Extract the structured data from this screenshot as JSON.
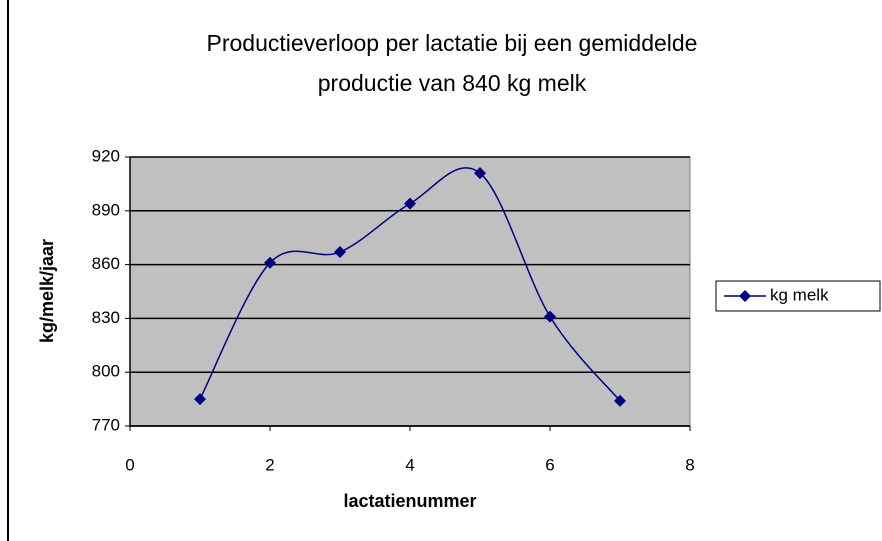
{
  "chart_data": {
    "type": "scatter-smooth",
    "title": [
      "Productieverloop per lactatie bij een gemiddelde",
      "productie van 840 kg melk"
    ],
    "x_label": "lactatienummer",
    "y_label": "kg/melk/jaar",
    "x": [
      1,
      2,
      3,
      4,
      5,
      6,
      7
    ],
    "series": [
      {
        "name": "kg melk",
        "color": "#000080",
        "values": [
          785,
          861,
          867,
          894,
          911,
          831,
          784
        ]
      }
    ],
    "xlim": [
      0,
      8
    ],
    "xticks": [
      0,
      2,
      4,
      6,
      8
    ],
    "ylim": [
      770,
      920
    ],
    "yticks": [
      770,
      800,
      830,
      860,
      890,
      920
    ],
    "grid": true,
    "legend": "right"
  }
}
